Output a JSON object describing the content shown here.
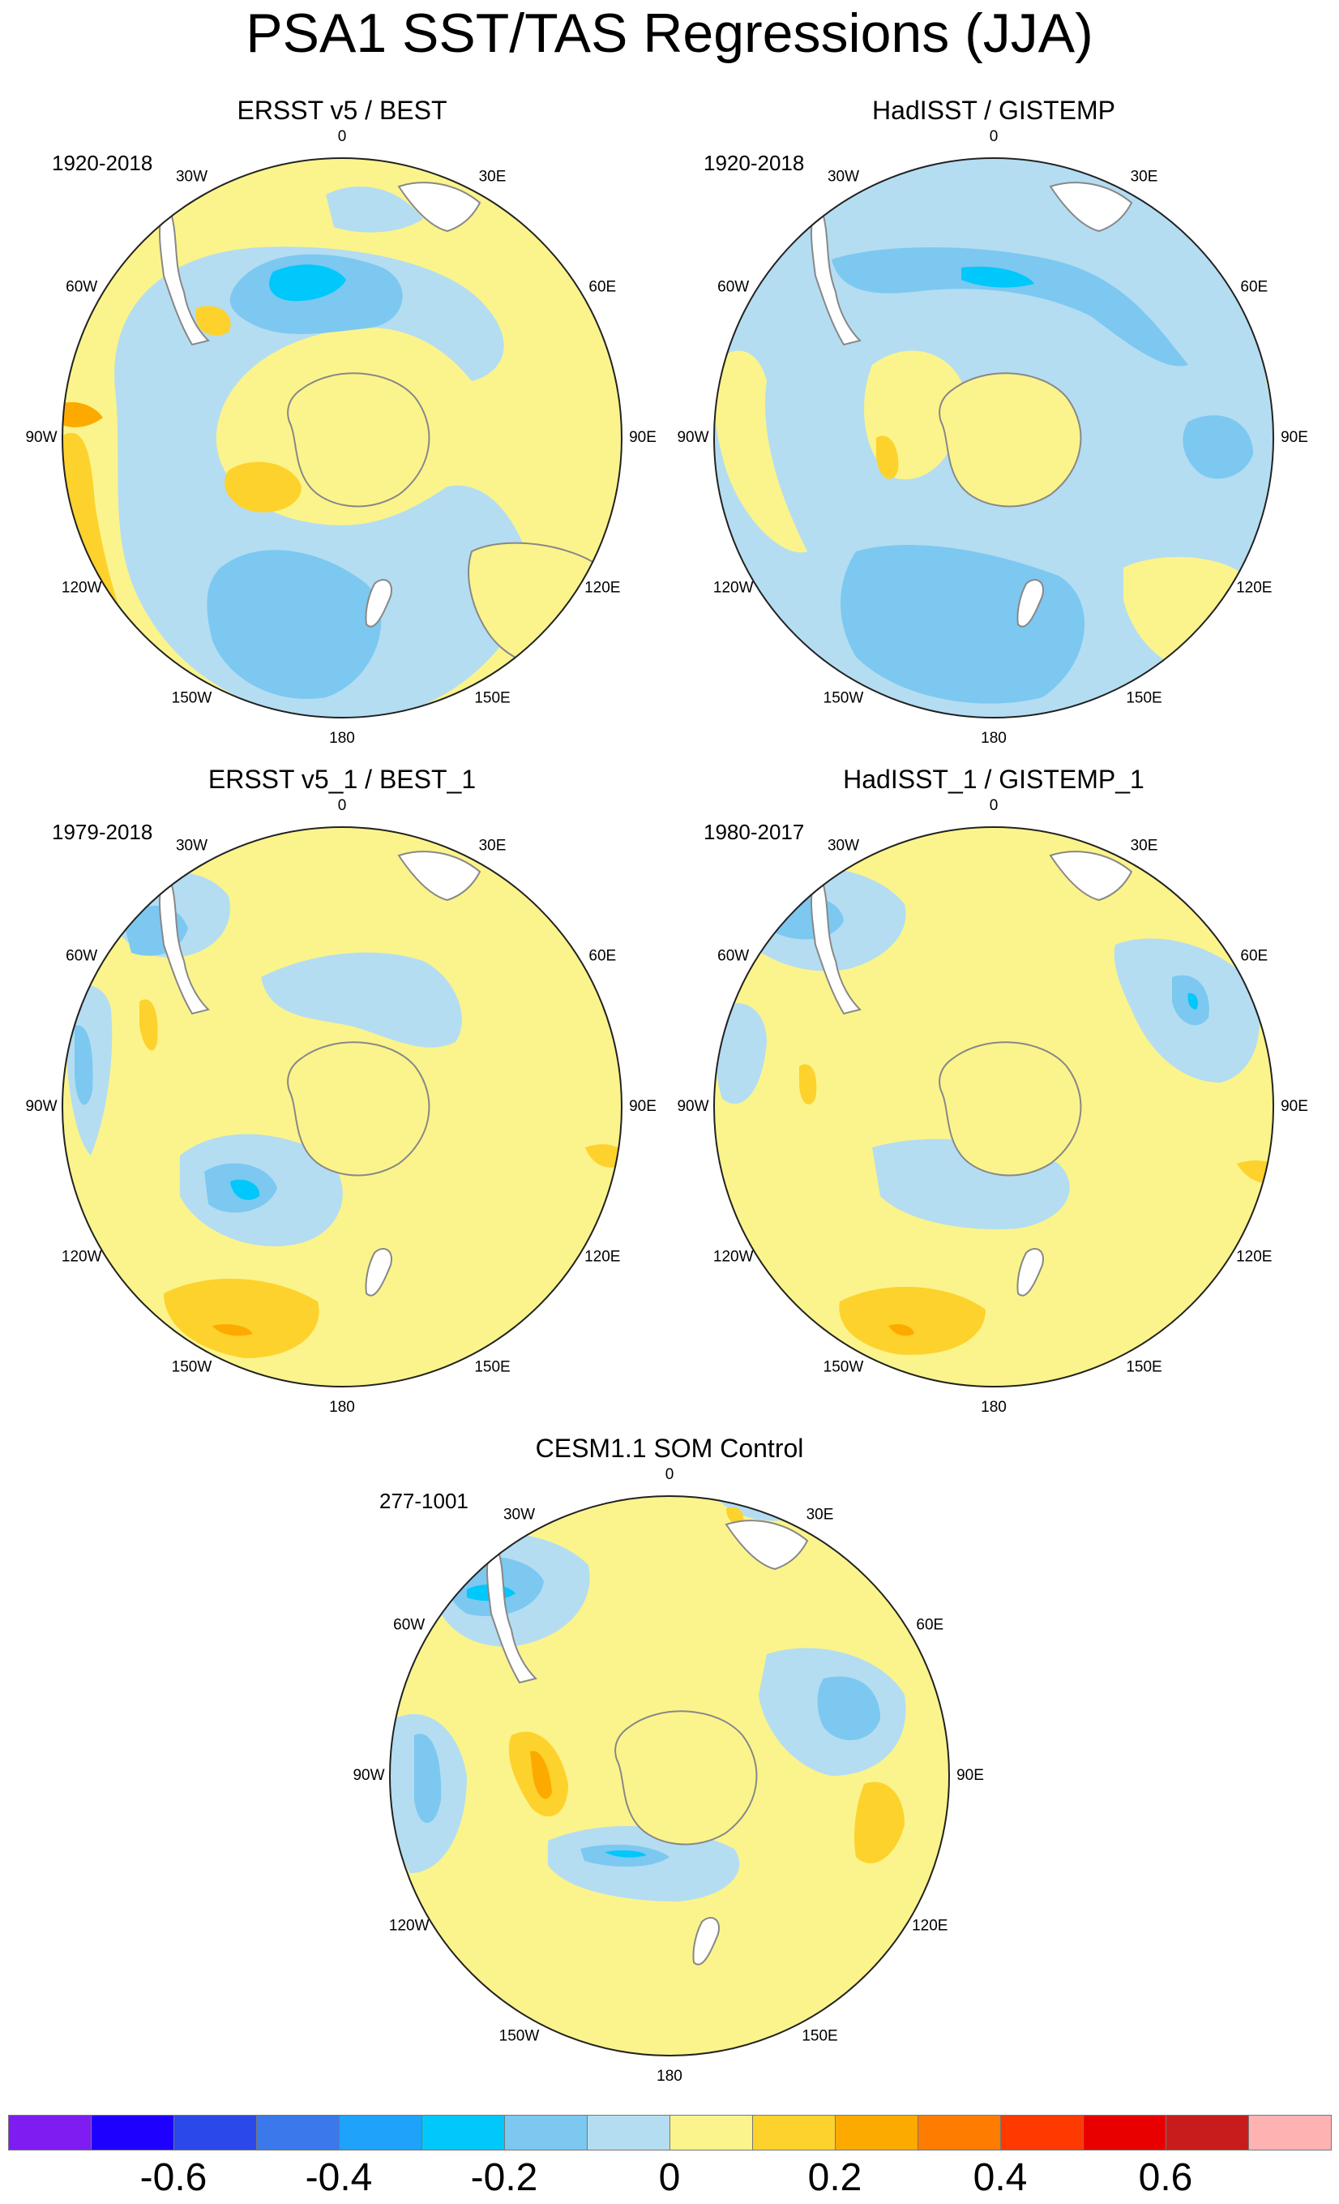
{
  "figure": {
    "title": "PSA1 SST/TAS Regressions (JJA)"
  },
  "panels": [
    {
      "id": "p1",
      "title": "ERSST v5 / BEST",
      "period": "1920-2018"
    },
    {
      "id": "p2",
      "title": "HadISST / GISTEMP",
      "period": "1920-2018"
    },
    {
      "id": "p3",
      "title": "ERSST v5_1 / BEST_1",
      "period": "1979-2018"
    },
    {
      "id": "p4",
      "title": "HadISST_1 / GISTEMP_1",
      "period": "1980-2017"
    },
    {
      "id": "p5",
      "title": "CESM1.1 SOM Control",
      "period": "277-1001"
    }
  ],
  "longitude_labels": [
    {
      "text": "0",
      "deg": 0
    },
    {
      "text": "30E",
      "deg": 30
    },
    {
      "text": "60E",
      "deg": 60
    },
    {
      "text": "90E",
      "deg": 90
    },
    {
      "text": "120E",
      "deg": 120
    },
    {
      "text": "150E",
      "deg": 150
    },
    {
      "text": "180",
      "deg": 180
    },
    {
      "text": "150W",
      "deg": 210
    },
    {
      "text": "120W",
      "deg": 240
    },
    {
      "text": "90W",
      "deg": 270
    },
    {
      "text": "60W",
      "deg": 300
    },
    {
      "text": "30W",
      "deg": 330
    }
  ],
  "colorbar": {
    "colors": [
      "#7f1cf2",
      "#1e00ff",
      "#2b48e8",
      "#3b78ec",
      "#1ea2fa",
      "#00c8fa",
      "#7cc8f0",
      "#b4ddf2",
      "#fbf48c",
      "#fdd22c",
      "#fdaa00",
      "#fe7d00",
      "#ff3a00",
      "#e80000",
      "#c81c1c",
      "#ffb2b2"
    ],
    "tick_labels": [
      "-0.6",
      "-0.4",
      "-0.2",
      "0",
      "0.2",
      "0.4",
      "0.6"
    ]
  },
  "palette": {
    "land": "#ffffff",
    "coast": "#888888",
    "neg_weak": "#b4ddf2",
    "neg_mid": "#7cc8f0",
    "neg_strong": "#00c8fa",
    "pos_weak": "#fbf48c",
    "pos_mid": "#fdd22c",
    "pos_strong": "#fdaa00"
  }
}
